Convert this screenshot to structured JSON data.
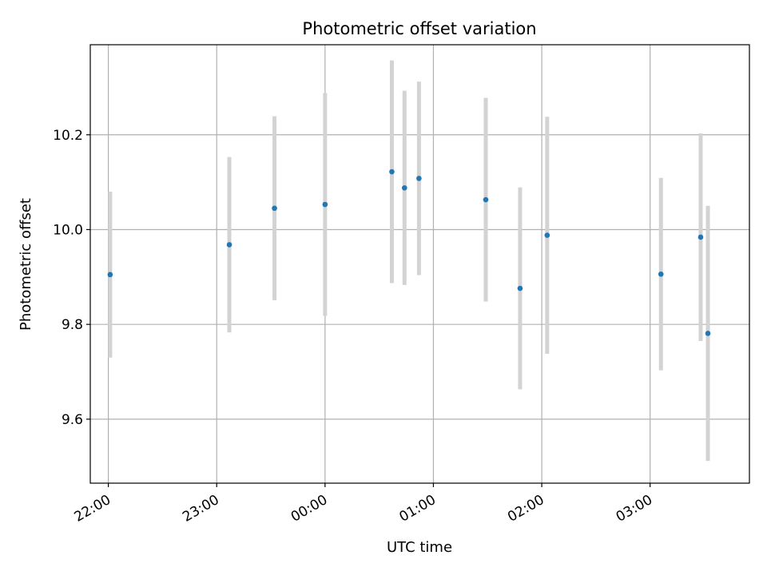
{
  "chart_data": {
    "type": "scatter",
    "title": "Photometric offset variation",
    "xlabel": "UTC time",
    "ylabel": "Photometric offset",
    "grid": true,
    "legend": "none",
    "x_tick_labels": [
      "22:00",
      "23:00",
      "00:00",
      "01:00",
      "02:00",
      "03:00"
    ],
    "y_tick_labels": [
      "9.6",
      "9.8",
      "10.0",
      "10.2"
    ],
    "y_ticks": [
      9.6,
      9.8,
      10.0,
      10.2
    ],
    "ylim": [
      9.465,
      10.39
    ],
    "xlim": [
      "21:50",
      "03:55"
    ],
    "colors": {
      "marker": "#1f77b4",
      "errorbar": "#d3d3d3",
      "grid": "#b0b0b0"
    },
    "series": [
      {
        "points": [
          {
            "time": "22:01",
            "y": 9.905,
            "ylow": 9.73,
            "yhigh": 10.08
          },
          {
            "time": "23:07",
            "y": 9.968,
            "ylow": 9.783,
            "yhigh": 10.153
          },
          {
            "time": "23:32",
            "y": 10.045,
            "ylow": 9.851,
            "yhigh": 10.239
          },
          {
            "time": "00:00",
            "y": 10.053,
            "ylow": 9.818,
            "yhigh": 10.288
          },
          {
            "time": "00:37",
            "y": 10.122,
            "ylow": 9.887,
            "yhigh": 10.357
          },
          {
            "time": "00:44",
            "y": 10.088,
            "ylow": 9.883,
            "yhigh": 10.293
          },
          {
            "time": "00:52",
            "y": 10.108,
            "ylow": 9.904,
            "yhigh": 10.312
          },
          {
            "time": "01:29",
            "y": 10.063,
            "ylow": 9.848,
            "yhigh": 10.278
          },
          {
            "time": "01:48",
            "y": 9.876,
            "ylow": 9.663,
            "yhigh": 10.089
          },
          {
            "time": "02:03",
            "y": 9.988,
            "ylow": 9.738,
            "yhigh": 10.238
          },
          {
            "time": "03:06",
            "y": 9.906,
            "ylow": 9.703,
            "yhigh": 10.109
          },
          {
            "time": "03:28",
            "y": 9.984,
            "ylow": 9.765,
            "yhigh": 10.203
          },
          {
            "time": "03:32",
            "y": 9.781,
            "ylow": 9.512,
            "yhigh": 10.05
          }
        ]
      }
    ]
  }
}
